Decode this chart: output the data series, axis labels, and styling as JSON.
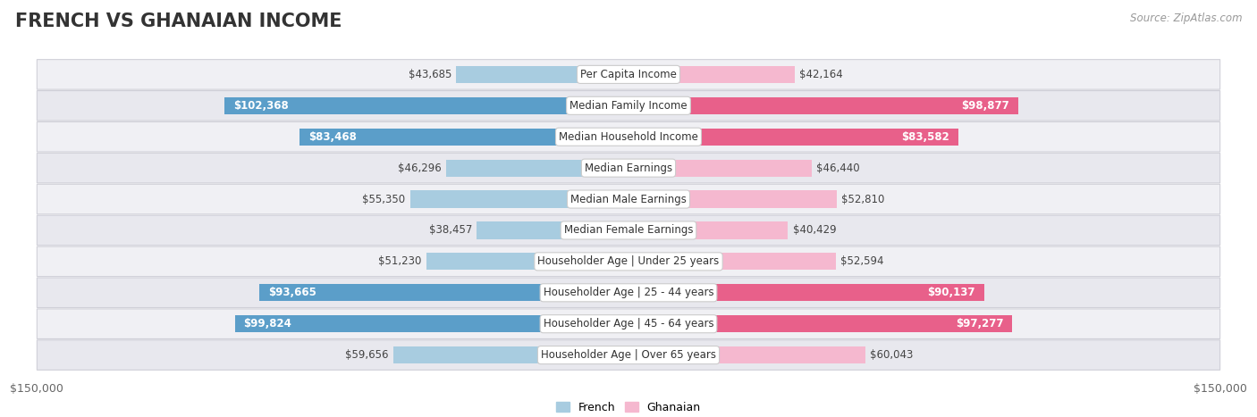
{
  "title": "FRENCH VS GHANAIAN INCOME",
  "source": "Source: ZipAtlas.com",
  "categories": [
    "Per Capita Income",
    "Median Family Income",
    "Median Household Income",
    "Median Earnings",
    "Median Male Earnings",
    "Median Female Earnings",
    "Householder Age | Under 25 years",
    "Householder Age | 25 - 44 years",
    "Householder Age | 45 - 64 years",
    "Householder Age | Over 65 years"
  ],
  "french_values": [
    43685,
    102368,
    83468,
    46296,
    55350,
    38457,
    51230,
    93665,
    99824,
    59656
  ],
  "ghanaian_values": [
    42164,
    98877,
    83582,
    46440,
    52810,
    40429,
    52594,
    90137,
    97277,
    60043
  ],
  "french_labels": [
    "$43,685",
    "$102,368",
    "$83,468",
    "$46,296",
    "$55,350",
    "$38,457",
    "$51,230",
    "$93,665",
    "$99,824",
    "$59,656"
  ],
  "ghanaian_labels": [
    "$42,164",
    "$98,877",
    "$83,582",
    "$46,440",
    "$52,810",
    "$40,429",
    "$52,594",
    "$90,137",
    "$97,277",
    "$60,043"
  ],
  "french_color_light": "#a8cce0",
  "french_color_dark": "#5b9ec9",
  "ghanaian_color_light": "#f5b8cf",
  "ghanaian_color_dark": "#e8608a",
  "max_value": 150000,
  "inside_threshold": 65000,
  "title_fontsize": 15,
  "label_fontsize": 8.5,
  "category_fontsize": 8.5,
  "axis_fontsize": 9,
  "row_color_odd": "#f0f0f4",
  "row_color_even": "#e8e8ee",
  "row_outline": "#d0d0d8"
}
